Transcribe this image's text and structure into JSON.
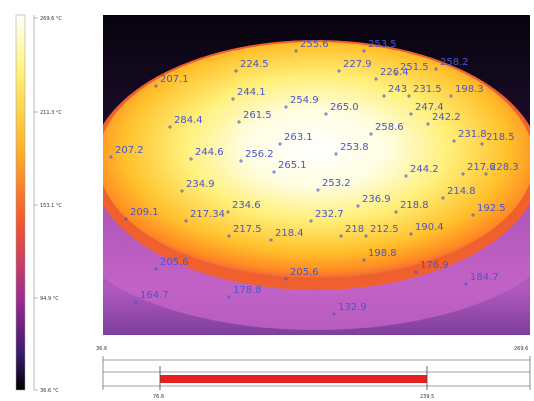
{
  "colorbar": {
    "labels": [
      "269.6 °C",
      "211.3 °C",
      "153.1 °C",
      "94.9 °C",
      "36.6 °C"
    ]
  },
  "points": [
    {
      "label": "255.6"
    },
    {
      "label": "253.5"
    },
    {
      "label": "224.5"
    },
    {
      "label": "227.9"
    },
    {
      "label": "226.4"
    },
    {
      "label": "251.5"
    },
    {
      "label": "258.2"
    },
    {
      "label": "207.1"
    },
    {
      "label": "244.1"
    },
    {
      "label": "254.9"
    },
    {
      "label": "265.0"
    },
    {
      "label": "243"
    },
    {
      "label": "231.5"
    },
    {
      "label": "198.3"
    },
    {
      "label": "247.4"
    },
    {
      "label": "242.2"
    },
    {
      "label": "284.4"
    },
    {
      "label": "261.5"
    },
    {
      "label": "258.6"
    },
    {
      "label": "231.8"
    },
    {
      "label": "218.5"
    },
    {
      "label": "263.1"
    },
    {
      "label": "253.8"
    },
    {
      "label": "207.2"
    },
    {
      "label": "244.6"
    },
    {
      "label": "256.2"
    },
    {
      "label": "265.1"
    },
    {
      "label": "244.2"
    },
    {
      "label": "217.6"
    },
    {
      "label": "228.3"
    },
    {
      "label": "234.9"
    },
    {
      "label": "253.2"
    },
    {
      "label": "214.8"
    },
    {
      "label": "236.9"
    },
    {
      "label": "218.8"
    },
    {
      "label": "192.5"
    },
    {
      "label": "209.1"
    },
    {
      "label": "217.34"
    },
    {
      "label": "234.6"
    },
    {
      "label": "232.7"
    },
    {
      "label": "217.5"
    },
    {
      "label": "218.4"
    },
    {
      "label": "218"
    },
    {
      "label": "212.5"
    },
    {
      "label": "190.4"
    },
    {
      "label": "198.8"
    },
    {
      "label": "205.6"
    },
    {
      "label": "205.6"
    },
    {
      "label": "176.9"
    },
    {
      "label": "184.7"
    },
    {
      "label": "164.7"
    },
    {
      "label": "178.8"
    },
    {
      "label": "132.9"
    }
  ],
  "range": {
    "min_label": "36.6",
    "max_label": "269.6",
    "low_label": "76.6",
    "high_label": "239.5"
  }
}
